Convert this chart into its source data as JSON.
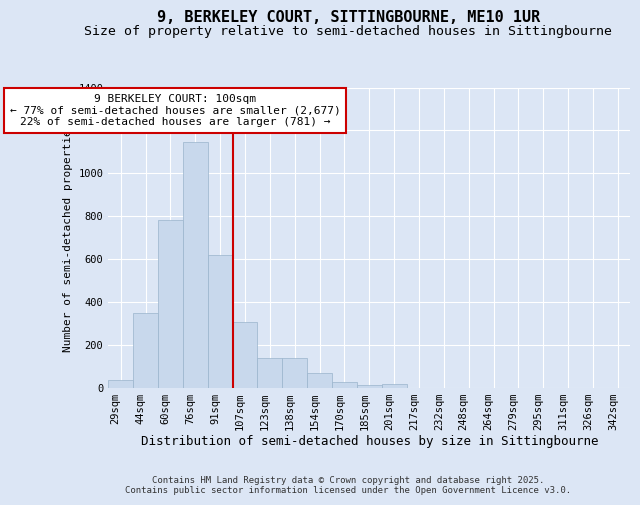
{
  "title": "9, BERKELEY COURT, SITTINGBOURNE, ME10 1UR",
  "subtitle": "Size of property relative to semi-detached houses in Sittingbourne",
  "xlabel": "Distribution of semi-detached houses by size in Sittingbourne",
  "ylabel": "Number of semi-detached properties",
  "categories": [
    "29sqm",
    "44sqm",
    "60sqm",
    "76sqm",
    "91sqm",
    "107sqm",
    "123sqm",
    "138sqm",
    "154sqm",
    "170sqm",
    "185sqm",
    "201sqm",
    "217sqm",
    "232sqm",
    "248sqm",
    "264sqm",
    "279sqm",
    "295sqm",
    "311sqm",
    "326sqm",
    "342sqm"
  ],
  "values": [
    35,
    350,
    780,
    1145,
    620,
    305,
    140,
    140,
    70,
    25,
    10,
    15,
    0,
    0,
    0,
    0,
    0,
    0,
    0,
    0,
    0
  ],
  "bar_color": "#c8d8ec",
  "bar_edge_color": "#9ab4cc",
  "vline_x": 4.5,
  "vline_color": "#cc0000",
  "annotation_text": "9 BERKELEY COURT: 100sqm\n← 77% of semi-detached houses are smaller (2,677)\n22% of semi-detached houses are larger (781) →",
  "annotation_box_color": "#ffffff",
  "annotation_box_edge": "#cc0000",
  "ylim": [
    0,
    1400
  ],
  "yticks": [
    0,
    200,
    400,
    600,
    800,
    1000,
    1200,
    1400
  ],
  "background_color": "#dce6f5",
  "plot_bg_color": "#dce6f5",
  "footer": "Contains HM Land Registry data © Crown copyright and database right 2025.\nContains public sector information licensed under the Open Government Licence v3.0.",
  "title_fontsize": 11,
  "subtitle_fontsize": 9.5,
  "xlabel_fontsize": 9,
  "ylabel_fontsize": 8,
  "tick_fontsize": 7.5,
  "annotation_fontsize": 8,
  "footer_fontsize": 6.5
}
